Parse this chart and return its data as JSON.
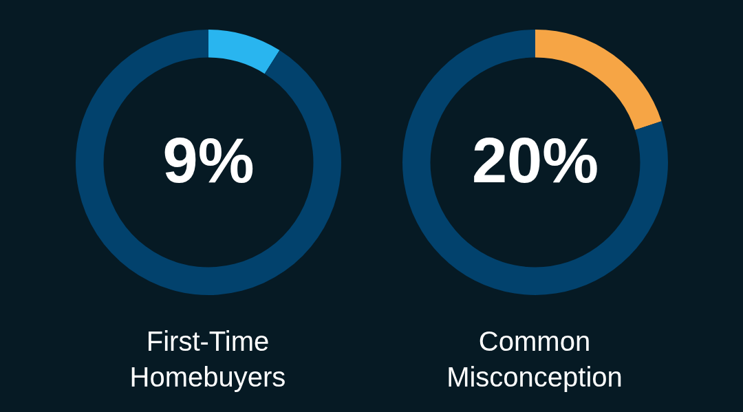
{
  "chart_data": [
    {
      "type": "donut",
      "title": "First-Time Homebuyers",
      "categories": [
        null,
        null
      ],
      "values": [
        9,
        91
      ],
      "colors": [
        "#29b5ef",
        "#02426d"
      ],
      "value_labels": [
        "9%",
        null
      ],
      "legend": false
    },
    {
      "type": "donut",
      "title": "Common Misconception",
      "categories": [
        null,
        null
      ],
      "values": [
        20,
        80
      ],
      "colors": [
        "#f6a545",
        "#02426d"
      ],
      "value_labels": [
        "20%",
        null
      ],
      "legend": false
    }
  ]
}
